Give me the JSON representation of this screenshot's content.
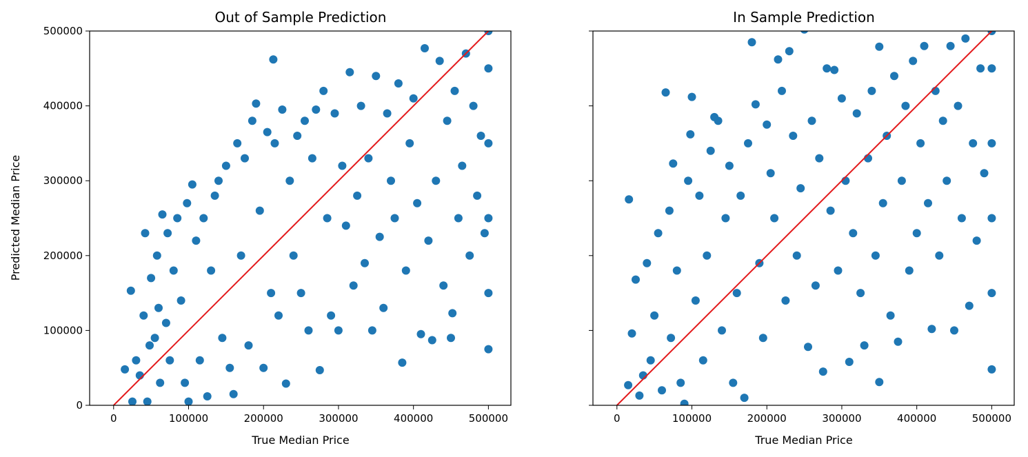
{
  "chart_data": [
    {
      "type": "scatter",
      "title": "Out of Sample Prediction",
      "xlabel": "True Median Price",
      "ylabel": "Predicted Median Price",
      "xlim": [
        -32000,
        530000
      ],
      "ylim": [
        0,
        500000
      ],
      "xticks": [
        0,
        100000,
        200000,
        300000,
        400000,
        500000
      ],
      "yticks": [
        0,
        100000,
        200000,
        300000,
        400000,
        500000
      ],
      "xtick_labels": [
        "0",
        "100000",
        "200000",
        "300000",
        "400000",
        "500000"
      ],
      "ytick_labels": [
        "0",
        "100000",
        "200000",
        "300000",
        "400000",
        "500000"
      ],
      "point_color": "#1f77b4",
      "reference_line": {
        "color": "#e31a1c",
        "from": [
          0,
          0
        ],
        "to": [
          500000,
          500000
        ]
      },
      "grid": false,
      "series": [
        {
          "points": [
            [
              15000,
              48000
            ],
            [
              23000,
              153000
            ],
            [
              25000,
              5000
            ],
            [
              30000,
              60000
            ],
            [
              35000,
              40000
            ],
            [
              40000,
              120000
            ],
            [
              42000,
              230000
            ],
            [
              45000,
              5000
            ],
            [
              48000,
              80000
            ],
            [
              50000,
              170000
            ],
            [
              55000,
              90000
            ],
            [
              58000,
              200000
            ],
            [
              60000,
              130000
            ],
            [
              62000,
              30000
            ],
            [
              65000,
              255000
            ],
            [
              70000,
              110000
            ],
            [
              72000,
              230000
            ],
            [
              75000,
              60000
            ],
            [
              80000,
              180000
            ],
            [
              85000,
              250000
            ],
            [
              90000,
              140000
            ],
            [
              95000,
              30000
            ],
            [
              98000,
              270000
            ],
            [
              100000,
              5000
            ],
            [
              105000,
              295000
            ],
            [
              110000,
              220000
            ],
            [
              115000,
              60000
            ],
            [
              120000,
              250000
            ],
            [
              125000,
              12000
            ],
            [
              130000,
              180000
            ],
            [
              135000,
              280000
            ],
            [
              140000,
              300000
            ],
            [
              145000,
              90000
            ],
            [
              150000,
              320000
            ],
            [
              155000,
              50000
            ],
            [
              160000,
              15000
            ],
            [
              165000,
              350000
            ],
            [
              170000,
              200000
            ],
            [
              175000,
              330000
            ],
            [
              180000,
              80000
            ],
            [
              185000,
              380000
            ],
            [
              190000,
              403000
            ],
            [
              195000,
              260000
            ],
            [
              200000,
              50000
            ],
            [
              205000,
              365000
            ],
            [
              210000,
              150000
            ],
            [
              213000,
              462000
            ],
            [
              215000,
              350000
            ],
            [
              220000,
              120000
            ],
            [
              225000,
              395000
            ],
            [
              230000,
              29000
            ],
            [
              235000,
              300000
            ],
            [
              240000,
              200000
            ],
            [
              245000,
              360000
            ],
            [
              250000,
              150000
            ],
            [
              255000,
              380000
            ],
            [
              260000,
              100000
            ],
            [
              265000,
              330000
            ],
            [
              270000,
              395000
            ],
            [
              275000,
              47000
            ],
            [
              280000,
              420000
            ],
            [
              285000,
              250000
            ],
            [
              290000,
              120000
            ],
            [
              295000,
              390000
            ],
            [
              300000,
              100000
            ],
            [
              305000,
              320000
            ],
            [
              310000,
              240000
            ],
            [
              315000,
              445000
            ],
            [
              320000,
              160000
            ],
            [
              325000,
              280000
            ],
            [
              330000,
              400000
            ],
            [
              335000,
              190000
            ],
            [
              340000,
              330000
            ],
            [
              345000,
              100000
            ],
            [
              350000,
              440000
            ],
            [
              355000,
              225000
            ],
            [
              360000,
              130000
            ],
            [
              365000,
              390000
            ],
            [
              370000,
              300000
            ],
            [
              375000,
              250000
            ],
            [
              380000,
              430000
            ],
            [
              385000,
              57000
            ],
            [
              390000,
              180000
            ],
            [
              395000,
              350000
            ],
            [
              400000,
              410000
            ],
            [
              405000,
              270000
            ],
            [
              410000,
              95000
            ],
            [
              415000,
              477000
            ],
            [
              420000,
              220000
            ],
            [
              425000,
              87000
            ],
            [
              430000,
              300000
            ],
            [
              435000,
              460000
            ],
            [
              440000,
              160000
            ],
            [
              445000,
              380000
            ],
            [
              450000,
              90000
            ],
            [
              452000,
              123000
            ],
            [
              455000,
              420000
            ],
            [
              460000,
              250000
            ],
            [
              465000,
              320000
            ],
            [
              470000,
              470000
            ],
            [
              475000,
              200000
            ],
            [
              480000,
              400000
            ],
            [
              485000,
              280000
            ],
            [
              490000,
              360000
            ],
            [
              495000,
              230000
            ],
            [
              500000,
              75000
            ],
            [
              500000,
              150000
            ],
            [
              500000,
              250000
            ],
            [
              500000,
              350000
            ],
            [
              500000,
              450000
            ],
            [
              500000,
              500000
            ]
          ]
        }
      ]
    },
    {
      "type": "scatter",
      "title": "In Sample Prediction",
      "xlabel": "True Median Price",
      "ylabel": "",
      "xlim": [
        -32000,
        530000
      ],
      "ylim": [
        0,
        500000
      ],
      "xticks": [
        0,
        100000,
        200000,
        300000,
        400000,
        500000
      ],
      "yticks": [
        0,
        100000,
        200000,
        300000,
        400000,
        500000
      ],
      "xtick_labels": [
        "0",
        "100000",
        "200000",
        "300000",
        "400000",
        "500000"
      ],
      "ytick_labels": [],
      "point_color": "#1f77b4",
      "reference_line": {
        "color": "#e31a1c",
        "from": [
          0,
          0
        ],
        "to": [
          500000,
          500000
        ]
      },
      "grid": false,
      "series": [
        {
          "points": [
            [
              15000,
              27000
            ],
            [
              16000,
              275000
            ],
            [
              20000,
              96000
            ],
            [
              25000,
              168000
            ],
            [
              30000,
              13000
            ],
            [
              35000,
              40000
            ],
            [
              40000,
              190000
            ],
            [
              45000,
              60000
            ],
            [
              50000,
              120000
            ],
            [
              55000,
              230000
            ],
            [
              60000,
              20000
            ],
            [
              65000,
              418000
            ],
            [
              70000,
              260000
            ],
            [
              72000,
              90000
            ],
            [
              75000,
              323000
            ],
            [
              80000,
              180000
            ],
            [
              85000,
              30000
            ],
            [
              90000,
              2000
            ],
            [
              95000,
              300000
            ],
            [
              98000,
              362000
            ],
            [
              100000,
              412000
            ],
            [
              105000,
              140000
            ],
            [
              110000,
              280000
            ],
            [
              115000,
              60000
            ],
            [
              120000,
              200000
            ],
            [
              125000,
              340000
            ],
            [
              130000,
              385000
            ],
            [
              135000,
              380000
            ],
            [
              140000,
              100000
            ],
            [
              145000,
              250000
            ],
            [
              150000,
              320000
            ],
            [
              155000,
              30000
            ],
            [
              160000,
              150000
            ],
            [
              165000,
              280000
            ],
            [
              170000,
              10000
            ],
            [
              175000,
              350000
            ],
            [
              180000,
              485000
            ],
            [
              185000,
              402000
            ],
            [
              190000,
              190000
            ],
            [
              195000,
              90000
            ],
            [
              200000,
              375000
            ],
            [
              205000,
              310000
            ],
            [
              210000,
              250000
            ],
            [
              215000,
              462000
            ],
            [
              220000,
              420000
            ],
            [
              225000,
              140000
            ],
            [
              230000,
              473000
            ],
            [
              235000,
              360000
            ],
            [
              240000,
              200000
            ],
            [
              245000,
              290000
            ],
            [
              250000,
              502000
            ],
            [
              255000,
              78000
            ],
            [
              260000,
              380000
            ],
            [
              265000,
              160000
            ],
            [
              270000,
              330000
            ],
            [
              275000,
              45000
            ],
            [
              280000,
              450000
            ],
            [
              285000,
              260000
            ],
            [
              290000,
              448000
            ],
            [
              295000,
              180000
            ],
            [
              300000,
              410000
            ],
            [
              305000,
              300000
            ],
            [
              310000,
              58000
            ],
            [
              315000,
              230000
            ],
            [
              320000,
              390000
            ],
            [
              325000,
              150000
            ],
            [
              330000,
              80000
            ],
            [
              335000,
              330000
            ],
            [
              340000,
              420000
            ],
            [
              345000,
              200000
            ],
            [
              350000,
              479000
            ],
            [
              350000,
              31000
            ],
            [
              355000,
              270000
            ],
            [
              360000,
              360000
            ],
            [
              365000,
              120000
            ],
            [
              370000,
              440000
            ],
            [
              375000,
              85000
            ],
            [
              380000,
              300000
            ],
            [
              385000,
              400000
            ],
            [
              390000,
              180000
            ],
            [
              395000,
              460000
            ],
            [
              400000,
              230000
            ],
            [
              405000,
              350000
            ],
            [
              410000,
              480000
            ],
            [
              415000,
              270000
            ],
            [
              420000,
              102000
            ],
            [
              425000,
              420000
            ],
            [
              430000,
              200000
            ],
            [
              435000,
              380000
            ],
            [
              440000,
              300000
            ],
            [
              445000,
              480000
            ],
            [
              450000,
              100000
            ],
            [
              455000,
              400000
            ],
            [
              460000,
              250000
            ],
            [
              465000,
              490000
            ],
            [
              470000,
              133000
            ],
            [
              475000,
              350000
            ],
            [
              480000,
              220000
            ],
            [
              485000,
              450000
            ],
            [
              490000,
              310000
            ],
            [
              500000,
              48000
            ],
            [
              500000,
              150000
            ],
            [
              500000,
              250000
            ],
            [
              500000,
              350000
            ],
            [
              500000,
              450000
            ],
            [
              500000,
              500000
            ]
          ]
        }
      ]
    }
  ]
}
